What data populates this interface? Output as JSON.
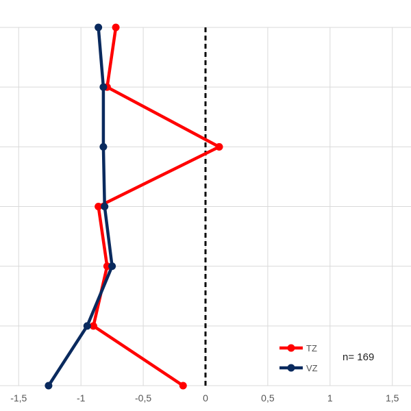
{
  "chart_data": {
    "type": "line",
    "orientation": "horizontal-profile",
    "title": "",
    "xlabel": "",
    "ylabel": "",
    "xlim": [
      -1.65,
      1.65
    ],
    "x_ticks": [
      -1.5,
      -1,
      -0.5,
      0,
      0.5,
      1,
      1.5
    ],
    "x_tick_labels": [
      "-1,5",
      "-1",
      "-0,5",
      "0",
      "0,5",
      "1",
      "1,5"
    ],
    "levels": [
      1,
      2,
      3,
      4,
      5,
      6,
      7
    ],
    "grid": true,
    "reference_line": {
      "x": 0,
      "style": "dashed",
      "color": "#000000"
    },
    "series": [
      {
        "name": "TZ",
        "color": "#ff0000",
        "values": [
          -0.72,
          -0.79,
          0.11,
          -0.86,
          -0.79,
          -0.9,
          -0.18
        ]
      },
      {
        "name": "VZ",
        "color": "#0a2a5e",
        "values": [
          -0.86,
          -0.82,
          -0.82,
          -0.81,
          -0.75,
          -0.95,
          -1.26
        ]
      }
    ],
    "legend_position": "bottom-right",
    "annotation": "n= 169"
  }
}
